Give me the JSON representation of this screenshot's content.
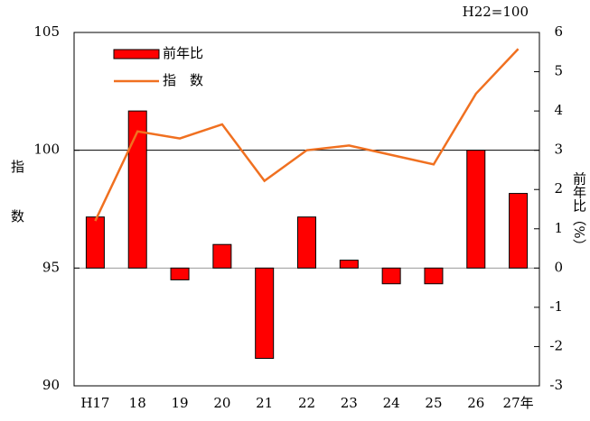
{
  "chart_data": {
    "type": "bar",
    "note": "H22=100",
    "ylabel": "指数",
    "y2label": "前年比（%）",
    "categories": [
      "H17",
      "18",
      "19",
      "20",
      "21",
      "22",
      "23",
      "24",
      "25",
      "26",
      "27年"
    ],
    "series": [
      {
        "name": "前年比",
        "type": "bar",
        "axis": "y2",
        "color": "#ff0000",
        "values": [
          1.3,
          4.0,
          -0.3,
          0.6,
          -2.3,
          1.3,
          0.2,
          -0.4,
          -0.4,
          3.0,
          1.9
        ]
      },
      {
        "name": "指　数",
        "type": "line",
        "axis": "y",
        "color": "#f07020",
        "values": [
          97.0,
          100.8,
          100.5,
          101.1,
          98.7,
          100.0,
          100.2,
          99.8,
          99.4,
          102.4,
          104.3
        ]
      }
    ],
    "ylim": [
      90,
      105
    ],
    "yticks": [
      90,
      95,
      100,
      105
    ],
    "y2lim": [
      -3,
      6
    ],
    "y2ticks": [
      -3,
      -2,
      -1,
      0,
      1,
      2,
      3,
      4,
      5,
      6
    ],
    "grid": true
  }
}
